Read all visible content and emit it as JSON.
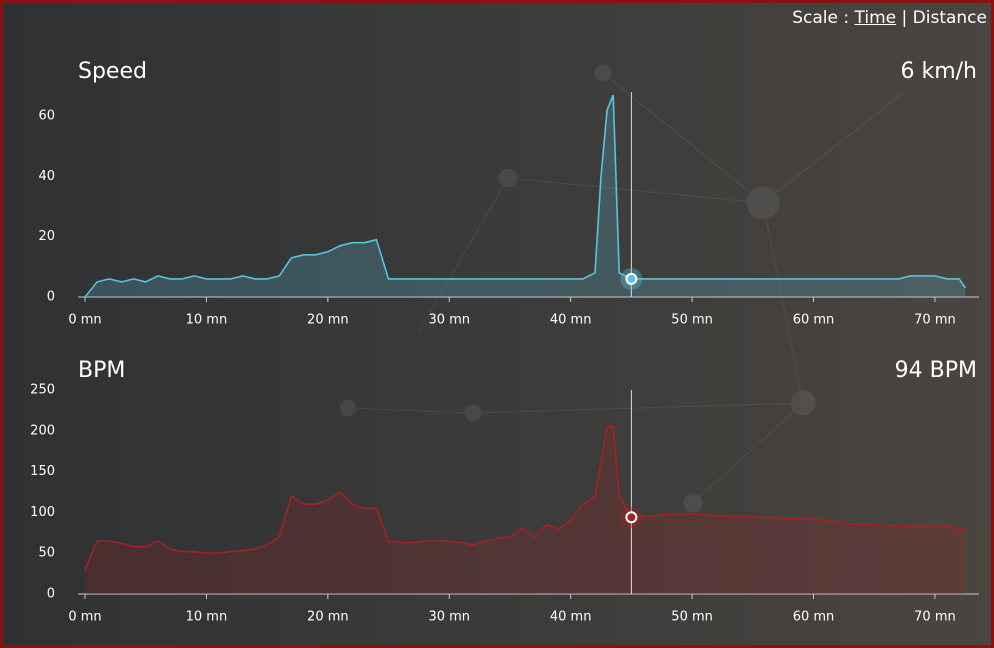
{
  "scale_toggle": {
    "label": "Scale :",
    "options": [
      "Time",
      "Distance"
    ],
    "separator": "|"
  },
  "chart_data": [
    {
      "type": "area",
      "title": "Speed",
      "readout": "6 km/h",
      "color": "#5bc2e0",
      "cursor_x": 45,
      "x": [
        0,
        1,
        2,
        3,
        4,
        5,
        6,
        7,
        8,
        9,
        10,
        11,
        12,
        13,
        14,
        15,
        16,
        17,
        18,
        19,
        20,
        21,
        22,
        23,
        24,
        25,
        26,
        27,
        28,
        29,
        30,
        31,
        32,
        33,
        34,
        35,
        36,
        37,
        38,
        39,
        40,
        41,
        42,
        42.5,
        43,
        43.5,
        44,
        45,
        46,
        47,
        48,
        49,
        50,
        51,
        52,
        53,
        54,
        55,
        56,
        57,
        58,
        59,
        60,
        61,
        62,
        63,
        64,
        65,
        66,
        67,
        68,
        69,
        70,
        71,
        72,
        72.5
      ],
      "series": [
        {
          "values": [
            0,
            5,
            6,
            5,
            6,
            5,
            7,
            6,
            6,
            7,
            6,
            6,
            6,
            7,
            6,
            6,
            7,
            13,
            14,
            14,
            15,
            17,
            18,
            18,
            19,
            6,
            6,
            6,
            6,
            6,
            6,
            6,
            6,
            6,
            6,
            6,
            6,
            6,
            6,
            6,
            6,
            6,
            8,
            40,
            62,
            67,
            8,
            6,
            6,
            6,
            6,
            6,
            6,
            6,
            6,
            6,
            6,
            6,
            6,
            6,
            6,
            6,
            6,
            6,
            6,
            6,
            6,
            6,
            6,
            6,
            7,
            7,
            7,
            6,
            6,
            3
          ]
        }
      ],
      "xlim": [
        0,
        73.3
      ],
      "ylim": [
        0,
        68
      ],
      "xticks": [
        {
          "value": 0,
          "label": "0 mn"
        },
        {
          "value": 10,
          "label": "10 mn"
        },
        {
          "value": 20,
          "label": "20 mn"
        },
        {
          "value": 30,
          "label": "30 mn"
        },
        {
          "value": 40,
          "label": "40 mn"
        },
        {
          "value": 50,
          "label": "50 mn"
        },
        {
          "value": 60,
          "label": "60 mn"
        },
        {
          "value": 70,
          "label": "70 mn"
        }
      ],
      "yticks": [
        0,
        20,
        40,
        60
      ]
    },
    {
      "type": "area",
      "title": "BPM",
      "readout": "94 BPM",
      "color": "#a52222",
      "cursor_x": 45,
      "x": [
        0,
        1,
        2,
        3,
        4,
        5,
        6,
        7,
        8,
        9,
        10,
        11,
        12,
        13,
        14,
        15,
        16,
        17,
        18,
        19,
        20,
        21,
        22,
        23,
        24,
        25,
        26,
        27,
        28,
        29,
        30,
        31,
        32,
        33,
        34,
        35,
        36,
        37,
        38,
        39,
        40,
        41,
        42,
        42.5,
        43,
        43.5,
        44,
        45,
        46,
        47,
        48,
        49,
        50,
        51,
        52,
        53,
        54,
        55,
        56,
        57,
        58,
        59,
        60,
        61,
        62,
        63,
        64,
        65,
        66,
        67,
        68,
        69,
        70,
        71,
        72,
        72.5
      ],
      "series": [
        {
          "values": [
            30,
            65,
            65,
            62,
            58,
            58,
            65,
            55,
            52,
            52,
            50,
            50,
            52,
            53,
            55,
            60,
            70,
            120,
            110,
            110,
            115,
            125,
            110,
            105,
            105,
            65,
            63,
            63,
            65,
            65,
            65,
            63,
            60,
            65,
            68,
            70,
            80,
            70,
            85,
            80,
            90,
            110,
            120,
            160,
            205,
            205,
            120,
            94,
            95,
            96,
            98,
            98,
            98,
            97,
            96,
            95,
            95,
            95,
            94,
            93,
            93,
            92,
            92,
            90,
            88,
            86,
            85,
            85,
            84,
            83,
            82,
            82,
            84,
            84,
            80,
            80
          ]
        }
      ],
      "xlim": [
        0,
        73.3
      ],
      "ylim": [
        0,
        250
      ],
      "xticks": [
        {
          "value": 0,
          "label": "0 mn"
        },
        {
          "value": 10,
          "label": "10 mn"
        },
        {
          "value": 20,
          "label": "20 mn"
        },
        {
          "value": 30,
          "label": "30 mn"
        },
        {
          "value": 40,
          "label": "40 mn"
        },
        {
          "value": 50,
          "label": "50 mn"
        },
        {
          "value": 60,
          "label": "60 mn"
        },
        {
          "value": 70,
          "label": "70 mn"
        }
      ],
      "yticks": [
        0,
        50,
        100,
        150,
        200,
        250
      ]
    }
  ]
}
